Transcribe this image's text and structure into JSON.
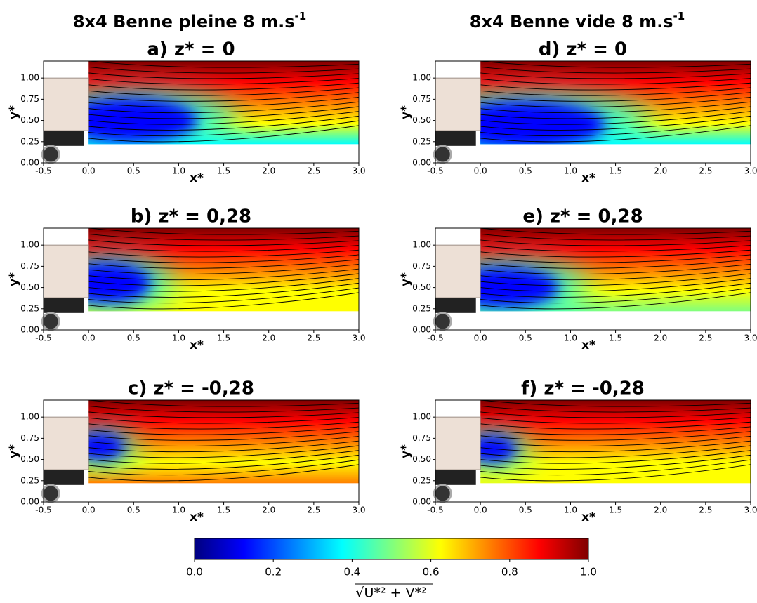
{
  "column_titles": [
    {
      "text": "8x4 Benne pleine 8 m.s",
      "sup": "-1"
    },
    {
      "text": "8x4 Benne vide 8 m.s",
      "sup": "-1"
    }
  ],
  "chart_data": [
    {
      "type": "flowfield",
      "title": "a) z* = 0",
      "xlabel": "x*",
      "ylabel": "y*",
      "colormap": "jet",
      "xlim": [
        -0.5,
        3.0
      ],
      "ylim": [
        0,
        1.2
      ],
      "xticks": [
        -0.5,
        {
          "value": 0,
          "label": "0.0"
        },
        0.5,
        {
          "value": 1,
          "label": "1.0"
        },
        1.5,
        {
          "value": 2,
          "label": "2.0"
        },
        2.5,
        {
          "value": 3,
          "label": "3.0"
        }
      ],
      "yticks": [
        {
          "value": 0,
          "label": "0.00"
        },
        0.25,
        {
          "value": 0.5,
          "label": "0.50"
        },
        0.75,
        {
          "value": 1,
          "label": "1.00"
        }
      ]
    },
    {
      "type": "flowfield",
      "title": "b) z* = 0,28",
      "xlabel": "x*",
      "ylabel": "y*",
      "colormap": "jet",
      "xlim": [
        -0.5,
        3.0
      ],
      "ylim": [
        0,
        1.2
      ],
      "xticks": [
        -0.5,
        {
          "value": 0,
          "label": "0.0"
        },
        0.5,
        {
          "value": 1,
          "label": "1.0"
        },
        1.5,
        {
          "value": 2,
          "label": "2.0"
        },
        2.5,
        {
          "value": 3,
          "label": "3.0"
        }
      ],
      "yticks": [
        {
          "value": 0,
          "label": "0.00"
        },
        0.25,
        {
          "value": 0.5,
          "label": "0.50"
        },
        0.75,
        {
          "value": 1,
          "label": "1.00"
        }
      ]
    },
    {
      "type": "flowfield",
      "title": "c) z* = -0,28",
      "xlabel": "x*",
      "ylabel": "y*",
      "colormap": "jet",
      "xlim": [
        -0.5,
        3.0
      ],
      "ylim": [
        0,
        1.2
      ],
      "xticks": [
        -0.5,
        {
          "value": 0,
          "label": "0.0"
        },
        0.5,
        {
          "value": 1,
          "label": "1.0"
        },
        1.5,
        {
          "value": 2,
          "label": "2.0"
        },
        2.5,
        {
          "value": 3,
          "label": "3.0"
        }
      ],
      "yticks": [
        {
          "value": 0,
          "label": "0.00"
        },
        0.25,
        {
          "value": 0.5,
          "label": "0.50"
        },
        0.75,
        {
          "value": 1,
          "label": "1.00"
        }
      ]
    },
    {
      "type": "flowfield",
      "title": "d) z* = 0",
      "xlabel": "x*",
      "ylabel": "y*",
      "colormap": "jet",
      "xlim": [
        -0.5,
        3.0
      ],
      "ylim": [
        0,
        1.2
      ],
      "xticks": [
        -0.5,
        {
          "value": 0,
          "label": "0.0"
        },
        0.5,
        {
          "value": 1,
          "label": "1.0"
        },
        1.5,
        {
          "value": 2,
          "label": "2.0"
        },
        2.5,
        {
          "value": 3,
          "label": "3.0"
        }
      ],
      "yticks": [
        {
          "value": 0,
          "label": "0.00"
        },
        0.25,
        {
          "value": 0.5,
          "label": "0.50"
        },
        0.75,
        {
          "value": 1,
          "label": "1.00"
        }
      ]
    },
    {
      "type": "flowfield",
      "title": "e) z* = 0,28",
      "xlabel": "x*",
      "ylabel": "y*",
      "colormap": "jet",
      "xlim": [
        -0.5,
        3.0
      ],
      "ylim": [
        0,
        1.2
      ],
      "xticks": [
        -0.5,
        {
          "value": 0,
          "label": "0.0"
        },
        0.5,
        {
          "value": 1,
          "label": "1.0"
        },
        1.5,
        {
          "value": 2,
          "label": "2.0"
        },
        2.5,
        {
          "value": 3,
          "label": "3.0"
        }
      ],
      "yticks": [
        {
          "value": 0,
          "label": "0.00"
        },
        0.25,
        {
          "value": 0.5,
          "label": "0.50"
        },
        0.75,
        {
          "value": 1,
          "label": "1.00"
        }
      ]
    },
    {
      "type": "flowfield",
      "title": "f) z* = -0,28",
      "xlabel": "x*",
      "ylabel": "y*",
      "colormap": "jet",
      "xlim": [
        -0.5,
        3.0
      ],
      "ylim": [
        0,
        1.2
      ],
      "xticks": [
        -0.5,
        {
          "value": 0,
          "label": "0.0"
        },
        0.5,
        {
          "value": 1,
          "label": "1.0"
        },
        1.5,
        {
          "value": 2,
          "label": "2.0"
        },
        2.5,
        {
          "value": 3,
          "label": "3.0"
        }
      ],
      "yticks": [
        {
          "value": 0,
          "label": "0.00"
        },
        0.25,
        {
          "value": 0.5,
          "label": "0.50"
        },
        0.75,
        {
          "value": 1,
          "label": "1.00"
        }
      ]
    },
    {
      "type": "colorbar",
      "colormap": "jet",
      "label": "√U*² + V*²",
      "xlim": [
        0,
        1
      ],
      "xticks": [
        {
          "value": 0,
          "label": "0.0"
        },
        0.2,
        0.4,
        0.6,
        0.8,
        {
          "value": 1,
          "label": "1.0"
        }
      ]
    }
  ]
}
